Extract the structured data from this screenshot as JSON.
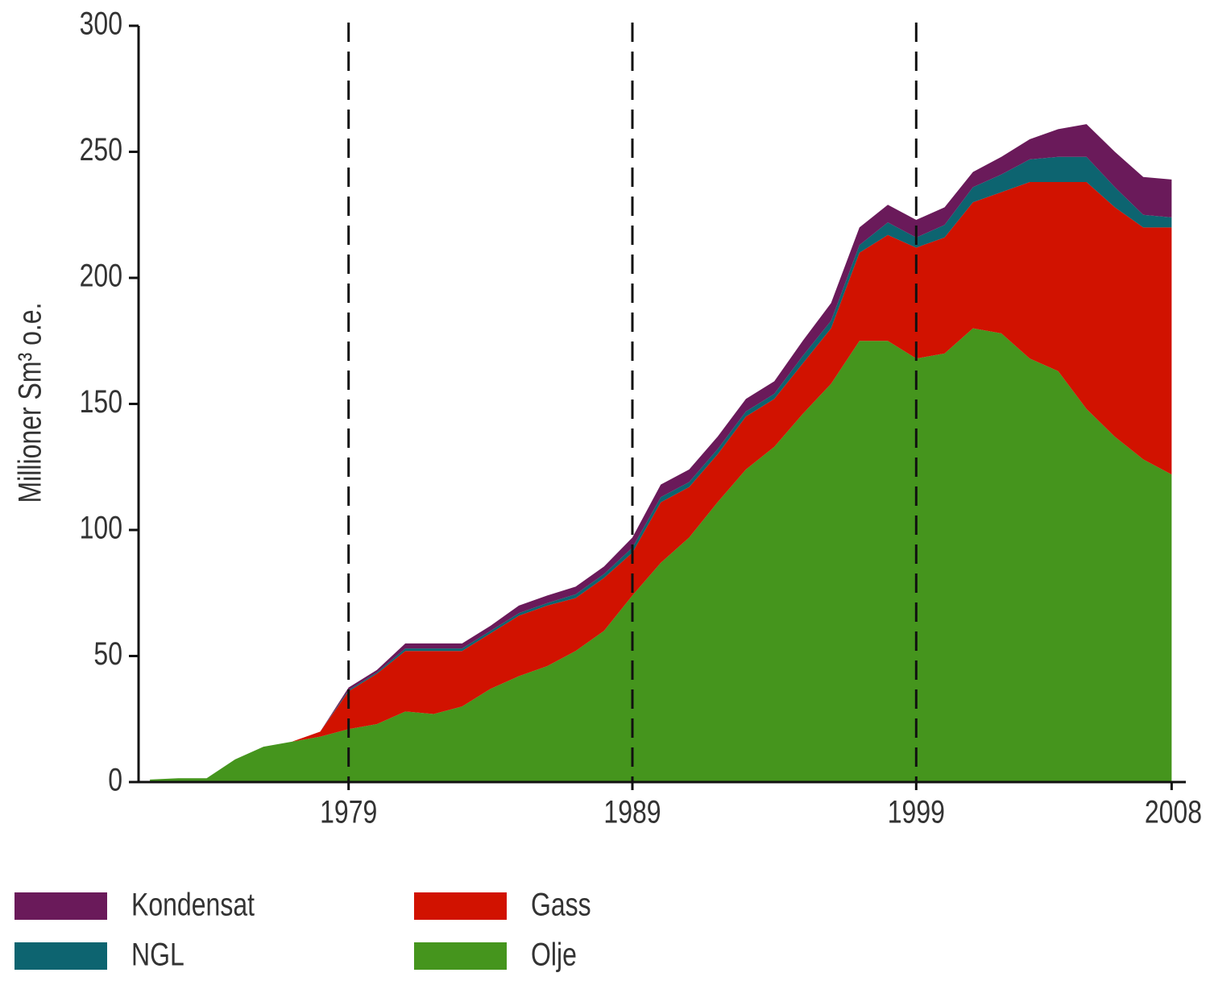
{
  "chart_data": {
    "type": "stacked_area",
    "y_label": "Millioner Sm³ o.e.",
    "x": [
      1972,
      1973,
      1974,
      1975,
      1976,
      1977,
      1978,
      1979,
      1980,
      1981,
      1982,
      1983,
      1984,
      1985,
      1986,
      1987,
      1988,
      1989,
      1990,
      1991,
      1992,
      1993,
      1994,
      1995,
      1996,
      1997,
      1998,
      1999,
      2000,
      2001,
      2002,
      2003,
      2004,
      2005,
      2006,
      2007,
      2008
    ],
    "series": [
      {
        "name": "Kondensat",
        "color": "#6a1a5a",
        "values": [
          0,
          0,
          0,
          0,
          0,
          0,
          0,
          1,
          1,
          2,
          2,
          2,
          2,
          3,
          3,
          3,
          3,
          4,
          5,
          5,
          5,
          5,
          5,
          6,
          7,
          7,
          7,
          7,
          7,
          6,
          7,
          8,
          11,
          13,
          14,
          15,
          15
        ]
      },
      {
        "name": "NGL",
        "color": "#0d6470",
        "values": [
          0,
          0,
          0,
          0,
          0,
          0,
          0,
          0.5,
          0.5,
          1,
          1,
          1,
          1,
          1,
          1,
          1.5,
          1.5,
          2,
          2,
          2,
          2,
          2,
          2,
          3,
          3,
          3,
          5,
          4,
          5,
          6,
          7,
          9,
          10,
          10,
          8,
          5,
          4
        ]
      },
      {
        "name": "Gass",
        "color": "#d11200",
        "values": [
          0,
          0,
          0,
          0,
          0,
          0,
          2,
          15,
          20,
          24,
          25,
          22,
          22,
          24,
          24,
          21,
          21,
          17,
          24,
          20,
          19,
          21,
          19,
          20,
          22,
          35,
          42,
          44,
          46,
          50,
          56,
          70,
          75,
          90,
          91,
          92,
          98
        ]
      },
      {
        "name": "Olje",
        "color": "#45951d",
        "values": [
          1,
          1.5,
          1.5,
          9,
          14,
          16,
          18,
          21,
          23,
          28,
          27,
          30,
          37,
          42,
          46,
          52,
          60,
          74,
          87,
          97,
          111,
          124,
          133,
          146,
          158,
          175,
          175,
          168,
          170,
          180,
          178,
          168,
          163,
          148,
          137,
          128,
          122
        ]
      }
    ],
    "xlim": [
      1971.6,
      2008.5
    ],
    "xticks": [
      1979,
      1989,
      1999,
      2008
    ],
    "ylim": [
      0,
      300
    ],
    "yticks": [
      0,
      50,
      100,
      150,
      200,
      250,
      300
    ],
    "vlines": [
      1979,
      1989,
      1999
    ]
  }
}
